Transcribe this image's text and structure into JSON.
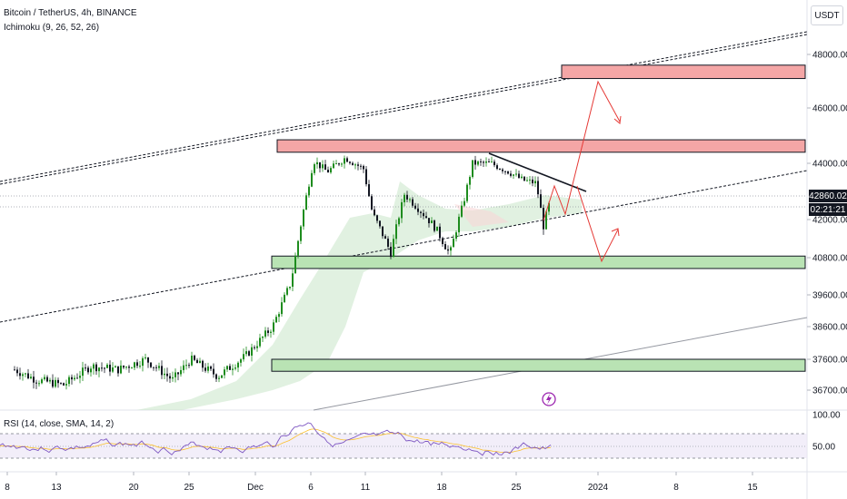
{
  "header": {
    "symbol_line": "Bitcoin / TetherUS, 4h, BINANCE",
    "indicator_line": "Ichimoku (9, 26, 52, 26)",
    "rsi_line": "RSI (14, close, SMA, 14, 2)",
    "unit": "USDT"
  },
  "price_axis": {
    "ticks": [
      "48000.00",
      "46000.00",
      "44000.00",
      "42000.00",
      "40800.00",
      "39600.00",
      "38600.00",
      "37600.00",
      "36700.00"
    ],
    "last_price": "42860.02",
    "countdown": "02:21:21"
  },
  "rsi_axis": {
    "ticks": [
      "100.00",
      "50.00"
    ]
  },
  "time_axis": {
    "ticks": [
      "8",
      "13",
      "20",
      "25",
      "Dec",
      "6",
      "11",
      "18",
      "25",
      "2024",
      "8",
      "15"
    ]
  },
  "colors": {
    "up": "#26a69a",
    "candle_green": "#1e8c1e",
    "candle_black": "#131722",
    "resistance_fill": "#f4a6a6",
    "support_fill": "#b9e3b4",
    "arrow": "#e53935",
    "cloud": "#c8e6c9",
    "rsi_line": "#7e57c2",
    "rsi_band": "#ede7f6"
  },
  "chart_data": {
    "type": "candlestick",
    "ylim": [
      36300,
      49000
    ],
    "resistance_zones": [
      [
        47100,
        47600
      ],
      [
        44400,
        44850
      ]
    ],
    "support_zones": [
      [
        40450,
        40850
      ],
      [
        37250,
        37600
      ]
    ],
    "last_price": 42860.02,
    "rsi_levels": [
      70,
      50,
      30
    ]
  },
  "icons": {
    "event_marker": "lightning-icon"
  }
}
